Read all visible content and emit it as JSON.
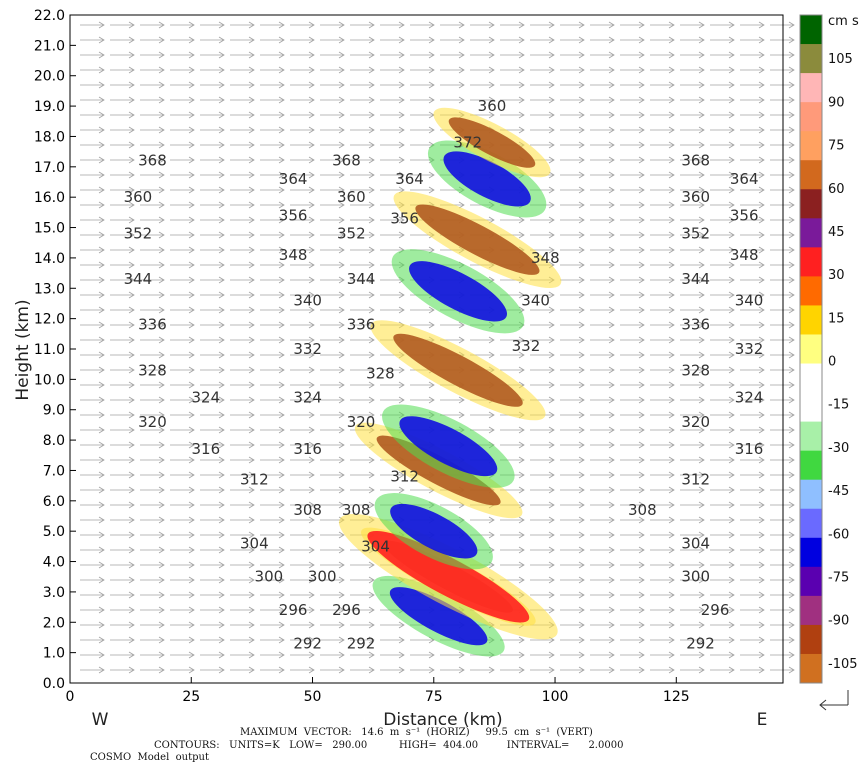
{
  "chart_data": {
    "type": "heatmap",
    "title": "",
    "xlabel": "Distance (km)",
    "ylabel": "Height (km)",
    "xlim": [
      0,
      147
    ],
    "ylim": [
      0,
      22
    ],
    "x_ticks": [
      "0",
      "25",
      "50",
      "75",
      "100",
      "125"
    ],
    "x_tick_values": [
      0,
      25,
      50,
      75,
      100,
      125
    ],
    "y_ticks": [
      "0.0",
      "1.0",
      "2.0",
      "3.0",
      "4.0",
      "5.0",
      "6.0",
      "7.0",
      "8.0",
      "9.0",
      "10.0",
      "11.0",
      "12.0",
      "13.0",
      "14.0",
      "15.0",
      "16.0",
      "17.0",
      "18.0",
      "19.0",
      "20.0",
      "21.0",
      "22.0"
    ],
    "y_tick_values": [
      0,
      1,
      2,
      3,
      4,
      5,
      6,
      7,
      8,
      9,
      10,
      11,
      12,
      13,
      14,
      15,
      16,
      17,
      18,
      19,
      20,
      21,
      22
    ],
    "west_label": "W",
    "east_label": "E",
    "colorbar": {
      "unit_label": "cm s",
      "tick_labels": [
        "105",
        "90",
        "75",
        "60",
        "45",
        "30",
        "15",
        "0",
        "-15",
        "-30",
        "-45",
        "-60",
        "-75",
        "-90",
        "-105"
      ],
      "tick_values": [
        105,
        90,
        75,
        60,
        45,
        30,
        15,
        0,
        -15,
        -30,
        -45,
        -60,
        -75,
        -90,
        -105
      ],
      "colors": [
        "#006400",
        "#8b8b3c",
        "#ffb6b6",
        "#ff9a7a",
        "#ffa060",
        "#d2691e",
        "#8b2020",
        "#7a1a9a",
        "#ff2020",
        "#ff6a00",
        "#ffd400",
        "#ffff80",
        "#ffffff",
        "#ffffff",
        "#a8f0a8",
        "#40d840",
        "#8fbfff",
        "#6a6aff",
        "#0000e0",
        "#5a00b0",
        "#a03080",
        "#b04010",
        "#d07020"
      ]
    },
    "contour_labels": [
      {
        "text": "368",
        "x": 17,
        "y": 17.2
      },
      {
        "text": "368",
        "x": 57,
        "y": 17.2
      },
      {
        "text": "368",
        "x": 129,
        "y": 17.2
      },
      {
        "text": "364",
        "x": 46,
        "y": 16.6
      },
      {
        "text": "364",
        "x": 70,
        "y": 16.6
      },
      {
        "text": "364",
        "x": 139,
        "y": 16.6
      },
      {
        "text": "360",
        "x": 14,
        "y": 16.0
      },
      {
        "text": "360",
        "x": 58,
        "y": 16.0
      },
      {
        "text": "360",
        "x": 129,
        "y": 16.0
      },
      {
        "text": "356",
        "x": 46,
        "y": 15.4
      },
      {
        "text": "356",
        "x": 69,
        "y": 15.3
      },
      {
        "text": "356",
        "x": 139,
        "y": 15.4
      },
      {
        "text": "352",
        "x": 14,
        "y": 14.8
      },
      {
        "text": "352",
        "x": 58,
        "y": 14.8
      },
      {
        "text": "352",
        "x": 129,
        "y": 14.8
      },
      {
        "text": "348",
        "x": 46,
        "y": 14.1
      },
      {
        "text": "348",
        "x": 98,
        "y": 14.0
      },
      {
        "text": "348",
        "x": 139,
        "y": 14.1
      },
      {
        "text": "344",
        "x": 14,
        "y": 13.3
      },
      {
        "text": "344",
        "x": 60,
        "y": 13.3
      },
      {
        "text": "344",
        "x": 129,
        "y": 13.3
      },
      {
        "text": "340",
        "x": 49,
        "y": 12.6
      },
      {
        "text": "340",
        "x": 96,
        "y": 12.6
      },
      {
        "text": "340",
        "x": 140,
        "y": 12.6
      },
      {
        "text": "336",
        "x": 17,
        "y": 11.8
      },
      {
        "text": "336",
        "x": 60,
        "y": 11.8
      },
      {
        "text": "336",
        "x": 129,
        "y": 11.8
      },
      {
        "text": "332",
        "x": 49,
        "y": 11.0
      },
      {
        "text": "332",
        "x": 94,
        "y": 11.1
      },
      {
        "text": "332",
        "x": 140,
        "y": 11.0
      },
      {
        "text": "328",
        "x": 17,
        "y": 10.3
      },
      {
        "text": "328",
        "x": 64,
        "y": 10.2
      },
      {
        "text": "328",
        "x": 129,
        "y": 10.3
      },
      {
        "text": "324",
        "x": 28,
        "y": 9.4
      },
      {
        "text": "324",
        "x": 49,
        "y": 9.4
      },
      {
        "text": "324",
        "x": 140,
        "y": 9.4
      },
      {
        "text": "320",
        "x": 17,
        "y": 8.6
      },
      {
        "text": "320",
        "x": 60,
        "y": 8.6
      },
      {
        "text": "320",
        "x": 129,
        "y": 8.6
      },
      {
        "text": "316",
        "x": 28,
        "y": 7.7
      },
      {
        "text": "316",
        "x": 49,
        "y": 7.7
      },
      {
        "text": "316",
        "x": 140,
        "y": 7.7
      },
      {
        "text": "312",
        "x": 38,
        "y": 6.7
      },
      {
        "text": "312",
        "x": 69,
        "y": 6.8
      },
      {
        "text": "312",
        "x": 129,
        "y": 6.7
      },
      {
        "text": "308",
        "x": 49,
        "y": 5.7
      },
      {
        "text": "308",
        "x": 59,
        "y": 5.7
      },
      {
        "text": "308",
        "x": 118,
        "y": 5.7
      },
      {
        "text": "304",
        "x": 38,
        "y": 4.6
      },
      {
        "text": "304",
        "x": 63,
        "y": 4.5
      },
      {
        "text": "304",
        "x": 129,
        "y": 4.6
      },
      {
        "text": "300",
        "x": 41,
        "y": 3.5
      },
      {
        "text": "300",
        "x": 52,
        "y": 3.5
      },
      {
        "text": "300",
        "x": 129,
        "y": 3.5
      },
      {
        "text": "296",
        "x": 46,
        "y": 2.4
      },
      {
        "text": "296",
        "x": 57,
        "y": 2.4
      },
      {
        "text": "296",
        "x": 133,
        "y": 2.4
      },
      {
        "text": "292",
        "x": 49,
        "y": 1.3
      },
      {
        "text": "292",
        "x": 60,
        "y": 1.3
      },
      {
        "text": "292",
        "x": 130,
        "y": 1.3
      },
      {
        "text": "360",
        "x": 87,
        "y": 19.0
      },
      {
        "text": "372",
        "x": 82,
        "y": 17.8
      }
    ],
    "features": [
      {
        "value": -45,
        "x": 76,
        "y": 2.2,
        "rx": 3.2,
        "ry": 1.8
      },
      {
        "value": 75,
        "x": 78,
        "y": 3.5,
        "rx": 2.6,
        "ry": 2.4
      },
      {
        "value": 45,
        "x": 78,
        "y": 3.5,
        "rx": 3.8,
        "ry": 3.0
      },
      {
        "value": -45,
        "x": 75,
        "y": 5.0,
        "rx": 3.5,
        "ry": 1.6
      },
      {
        "value": 75,
        "x": 76,
        "y": 7.0,
        "rx": 2.8,
        "ry": 2.3
      },
      {
        "value": -45,
        "x": 78,
        "y": 7.8,
        "rx": 3.6,
        "ry": 1.8
      },
      {
        "value": 75,
        "x": 80,
        "y": 10.3,
        "rx": 3.0,
        "ry": 2.4
      },
      {
        "value": -45,
        "x": 80,
        "y": 12.9,
        "rx": 3.7,
        "ry": 1.8
      },
      {
        "value": 75,
        "x": 84,
        "y": 14.6,
        "rx": 3.0,
        "ry": 2.3
      },
      {
        "value": -45,
        "x": 86,
        "y": 16.6,
        "rx": 3.6,
        "ry": 1.6
      },
      {
        "value": 75,
        "x": 87,
        "y": 17.8,
        "rx": 2.5,
        "ry": 1.6
      }
    ]
  },
  "footer": {
    "max_vector": "MAXIMUM  VECTOR:   14.6  m  s⁻¹  (HORIZ)     99.5  cm  s⁻¹  (VERT)",
    "contours": "CONTOURS:   UNITS=K   LOW=   290.00          HIGH=  404.00         INTERVAL=      2.0000",
    "model": "COSMO  Model  output"
  }
}
